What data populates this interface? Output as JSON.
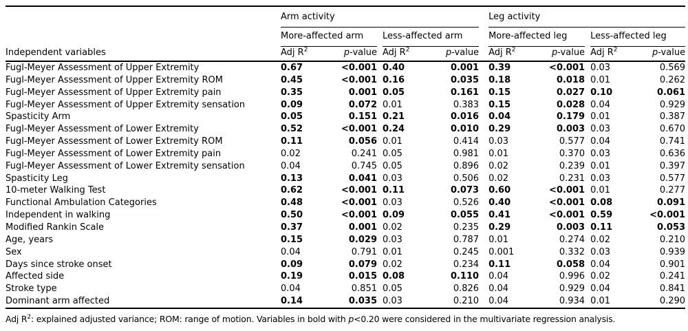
{
  "table": {
    "row_header": "Independent variables",
    "groups": [
      "Arm activity",
      "Leg activity"
    ],
    "sub_groups": [
      "More-affected arm",
      "Less-affected arm",
      "More-affected leg",
      "Less-affected leg"
    ],
    "col_headers": {
      "adj": "Adj R",
      "adj_sup": "2",
      "p": "p",
      "p_suffix": "-value"
    },
    "rows": [
      {
        "label": "Fugl-Meyer Assessment of Upper Extremity",
        "cells": [
          {
            "r": "0.67",
            "p": "<0.001",
            "bold": true
          },
          {
            "r": "0.40",
            "p": "0.001",
            "bold": true
          },
          {
            "r": "0.39",
            "p": "<0.001",
            "bold": true
          },
          {
            "r": "0.03",
            "p": "0.569",
            "bold": false
          }
        ]
      },
      {
        "label": "Fugl-Meyer Assessment of Upper Extremity ROM",
        "cells": [
          {
            "r": "0.45",
            "p": "<0.001",
            "bold": true
          },
          {
            "r": "0.16",
            "p": "0.035",
            "bold": true
          },
          {
            "r": "0.18",
            "p": "0.018",
            "bold": true
          },
          {
            "r": "0.01",
            "p": "0.262",
            "bold": false
          }
        ]
      },
      {
        "label": "Fugl-Meyer Assessment of Upper Extremity pain",
        "cells": [
          {
            "r": "0.35",
            "p": "0.001",
            "bold": true
          },
          {
            "r": "0.05",
            "p": "0.161",
            "bold": true
          },
          {
            "r": "0.15",
            "p": "0.027",
            "bold": true
          },
          {
            "r": "0.10",
            "p": "0.061",
            "bold": true
          }
        ]
      },
      {
        "label": "Fugl-Meyer Assessment of Upper Extremity sensation",
        "cells": [
          {
            "r": "0.09",
            "p": "0.072",
            "bold": true
          },
          {
            "r": "0.01",
            "p": "0.383",
            "bold": false
          },
          {
            "r": "0.15",
            "p": "0.028",
            "bold": true
          },
          {
            "r": "0.04",
            "p": "0.929",
            "bold": false
          }
        ]
      },
      {
        "label": "Spasticity Arm",
        "cells": [
          {
            "r": "0.05",
            "p": "0.151",
            "bold": true
          },
          {
            "r": "0.21",
            "p": "0.016",
            "bold": true
          },
          {
            "r": "0.04",
            "p": "0.179",
            "bold": true
          },
          {
            "r": "0.01",
            "p": "0.387",
            "bold": false
          }
        ]
      },
      {
        "label": "Fugl-Meyer Assessment of Lower Extremity",
        "cells": [
          {
            "r": "0.52",
            "p": "<0.001",
            "bold": true
          },
          {
            "r": "0.24",
            "p": "0.010",
            "bold": true
          },
          {
            "r": "0.29",
            "p": "0.003",
            "bold": true
          },
          {
            "r": "0.03",
            "p": "0.670",
            "bold": false
          }
        ]
      },
      {
        "label": "Fugl-Meyer Assessment of Lower Extremity ROM",
        "cells": [
          {
            "r": "0.11",
            "p": "0.056",
            "bold": true
          },
          {
            "r": "0.01",
            "p": "0.414",
            "bold": false
          },
          {
            "r": "0.03",
            "p": "0.577",
            "bold": false
          },
          {
            "r": "0.04",
            "p": "0.741",
            "bold": false
          }
        ]
      },
      {
        "label": "Fugl-Meyer Assessment of Lower Extremity pain",
        "cells": [
          {
            "r": "0.02",
            "p": "0.241",
            "bold": false
          },
          {
            "r": "0.05",
            "p": "0.981",
            "bold": false
          },
          {
            "r": "0.01",
            "p": "0.370",
            "bold": false
          },
          {
            "r": "0.03",
            "p": "0.636",
            "bold": false
          }
        ]
      },
      {
        "label": "Fugl-Meyer Assessment of Lower Extremity sensation",
        "cells": [
          {
            "r": "0.04",
            "p": "0.745",
            "bold": false
          },
          {
            "r": "0.05",
            "p": "0.896",
            "bold": false
          },
          {
            "r": "0.02",
            "p": "0.239",
            "bold": false
          },
          {
            "r": "0.01",
            "p": "0.397",
            "bold": false
          }
        ]
      },
      {
        "label": "Spasticity Leg",
        "cells": [
          {
            "r": "0.13",
            "p": "0.041",
            "bold": true
          },
          {
            "r": "0.03",
            "p": "0.506",
            "bold": false
          },
          {
            "r": "0.02",
            "p": "0.231",
            "bold": false
          },
          {
            "r": "0.03",
            "p": "0.577",
            "bold": false
          }
        ]
      },
      {
        "label": "10-meter Walking Test",
        "cells": [
          {
            "r": "0.62",
            "p": "<0.001",
            "bold": true
          },
          {
            "r": "0.11",
            "p": "0.073",
            "bold": true
          },
          {
            "r": "0.60",
            "p": "<0.001",
            "bold": true
          },
          {
            "r": "0.01",
            "p": "0.277",
            "bold": false
          }
        ]
      },
      {
        "label": "Functional Ambulation Categories",
        "cells": [
          {
            "r": "0.48",
            "p": "<0.001",
            "bold": true
          },
          {
            "r": "0.03",
            "p": "0.526",
            "bold": false
          },
          {
            "r": "0.40",
            "p": "<0.001",
            "bold": true
          },
          {
            "r": "0.08",
            "p": "0.091",
            "bold": true
          }
        ]
      },
      {
        "label": "Independent in walking",
        "cells": [
          {
            "r": "0.50",
            "p": "<0.001",
            "bold": true
          },
          {
            "r": "0.09",
            "p": "0.055",
            "bold": true
          },
          {
            "r": "0.41",
            "p": "<0.001",
            "bold": true
          },
          {
            "r": "0.59",
            "p": "<0.001",
            "bold": true
          }
        ]
      },
      {
        "label": "Modified Rankin Scale",
        "cells": [
          {
            "r": "0.37",
            "p": "0.001",
            "bold": true
          },
          {
            "r": "0.02",
            "p": "0.235",
            "bold": false
          },
          {
            "r": "0.29",
            "p": "0.003",
            "bold": true
          },
          {
            "r": "0.11",
            "p": "0.053",
            "bold": true
          }
        ]
      },
      {
        "label": "Age, years",
        "cells": [
          {
            "r": "0.15",
            "p": "0.029",
            "bold": true
          },
          {
            "r": "0.03",
            "p": "0.787",
            "bold": false
          },
          {
            "r": "0.01",
            "p": "0.274",
            "bold": false
          },
          {
            "r": "0.02",
            "p": "0.210",
            "bold": false
          }
        ]
      },
      {
        "label": "Sex",
        "cells": [
          {
            "r": "0.04",
            "p": "0.791",
            "bold": false
          },
          {
            "r": "0.01",
            "p": "0.245",
            "bold": false
          },
          {
            "r": "0.001",
            "p": "0.332",
            "bold": false
          },
          {
            "r": "0.03",
            "p": "0.939",
            "bold": false
          }
        ]
      },
      {
        "label": "Days since stroke onset",
        "cells": [
          {
            "r": "0.09",
            "p": "0.079",
            "bold": true
          },
          {
            "r": "0.02",
            "p": "0.234",
            "bold": false
          },
          {
            "r": "0.11",
            "p": "0.058",
            "bold": true
          },
          {
            "r": "0.04",
            "p": "0.901",
            "bold": false
          }
        ]
      },
      {
        "label": "Affected side",
        "cells": [
          {
            "r": "0.19",
            "p": "0.015",
            "bold": true
          },
          {
            "r": "0.08",
            "p": "0.110",
            "bold": true
          },
          {
            "r": "0.04",
            "p": "0.996",
            "bold": false
          },
          {
            "r": "0.02",
            "p": "0.241",
            "bold": false
          }
        ]
      },
      {
        "label": "Stroke type",
        "cells": [
          {
            "r": "0.04",
            "p": "0.851",
            "bold": false
          },
          {
            "r": "0.05",
            "p": "0.826",
            "bold": false
          },
          {
            "r": "0.04",
            "p": "0.929",
            "bold": false
          },
          {
            "r": "0.04",
            "p": "0.841",
            "bold": false
          }
        ]
      },
      {
        "label": "Dominant arm affected",
        "cells": [
          {
            "r": "0.14",
            "p": "0.035",
            "bold": true
          },
          {
            "r": "0.03",
            "p": "0.210",
            "bold": false
          },
          {
            "r": "0.04",
            "p": "0.934",
            "bold": false
          },
          {
            "r": "0.01",
            "p": "0.290",
            "bold": false
          }
        ]
      }
    ]
  },
  "footnote": {
    "pre": "Adj R",
    "sup": "2",
    "mid": ": explained adjusted variance; ROM: range of motion. Variables in bold with ",
    "p": "p",
    "post": "<0.20 were considered in the multivariate regression analysis."
  }
}
